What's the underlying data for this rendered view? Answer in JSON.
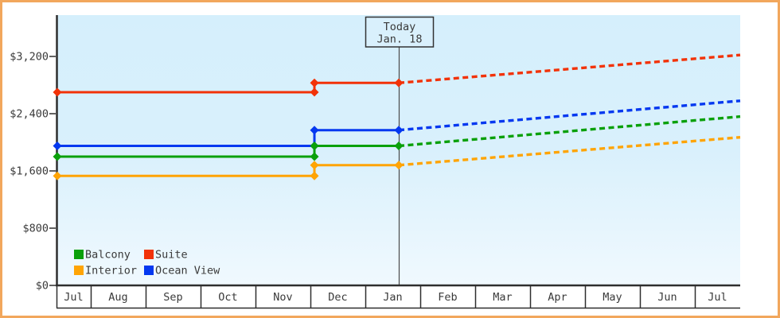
{
  "frame": {
    "border_color": "#f2a75c",
    "background": "#ffffff"
  },
  "plot": {
    "background_top": "#d5effc",
    "background_bottom": "#f0f9fe",
    "axis_color": "#2e2e2e"
  },
  "today_annotation": {
    "title": "Today",
    "date": "Jan. 18"
  },
  "legend": {
    "items": [
      {
        "label": "Balcony",
        "color": "#0aa00a"
      },
      {
        "label": "Suite",
        "color": "#f23208"
      },
      {
        "label": "Interior",
        "color": "#ffa405"
      },
      {
        "label": "Ocean View",
        "color": "#0438f0"
      }
    ]
  },
  "chart_data": {
    "type": "line",
    "title": "",
    "xlabel": "",
    "ylabel": "",
    "grid": false,
    "legend_position": "bottom-left",
    "x_axis": {
      "labels": [
        "Jul",
        "Aug",
        "Sep",
        "Oct",
        "Nov",
        "Dec",
        "Jan",
        "Feb",
        "Mar",
        "Apr",
        "May",
        "Jun",
        "Jul"
      ]
    },
    "y_axis": {
      "unit": "USD",
      "tick_values": [
        0,
        800,
        1600,
        2400,
        3200
      ],
      "tick_labels": [
        "$0",
        "$800",
        "$1,600",
        "$2,400",
        "$3,200"
      ],
      "range": [
        0,
        3778
      ]
    },
    "today": {
      "x_frac": 0.5,
      "label": "Today",
      "date": "Jan. 18"
    },
    "price_change_x_frac": 0.3765,
    "series": [
      {
        "name": "Interior",
        "color": "#ffa405",
        "solid": [
          {
            "x_frac": 0,
            "price": 1530
          },
          {
            "x_frac": 0.3765,
            "price": 1530
          },
          {
            "x_frac": 0.3765,
            "price": 1680
          },
          {
            "x_frac": 0.5,
            "price": 1680
          }
        ],
        "projected": [
          {
            "x_frac": 0.5,
            "price": 1680
          },
          {
            "x_frac": 1,
            "price": 2070
          }
        ]
      },
      {
        "name": "Ocean View",
        "color": "#0438f0",
        "solid": [
          {
            "x_frac": 0,
            "price": 1950
          },
          {
            "x_frac": 0.3765,
            "price": 1950
          },
          {
            "x_frac": 0.3765,
            "price": 2170
          },
          {
            "x_frac": 0.5,
            "price": 2170
          }
        ],
        "projected": [
          {
            "x_frac": 0.5,
            "price": 2170
          },
          {
            "x_frac": 1,
            "price": 2580
          }
        ]
      },
      {
        "name": "Balcony",
        "color": "#0aa00a",
        "solid": [
          {
            "x_frac": 0,
            "price": 1800
          },
          {
            "x_frac": 0.3765,
            "price": 1800
          },
          {
            "x_frac": 0.3765,
            "price": 1950
          },
          {
            "x_frac": 0.5,
            "price": 1950
          }
        ],
        "projected": [
          {
            "x_frac": 0.5,
            "price": 1950
          },
          {
            "x_frac": 1,
            "price": 2360
          }
        ]
      },
      {
        "name": "Suite",
        "color": "#f23208",
        "solid": [
          {
            "x_frac": 0,
            "price": 2700
          },
          {
            "x_frac": 0.3765,
            "price": 2700
          },
          {
            "x_frac": 0.3765,
            "price": 2830
          },
          {
            "x_frac": 0.5,
            "price": 2830
          }
        ],
        "projected": [
          {
            "x_frac": 0.5,
            "price": 2830
          },
          {
            "x_frac": 1,
            "price": 3220
          }
        ]
      }
    ]
  }
}
